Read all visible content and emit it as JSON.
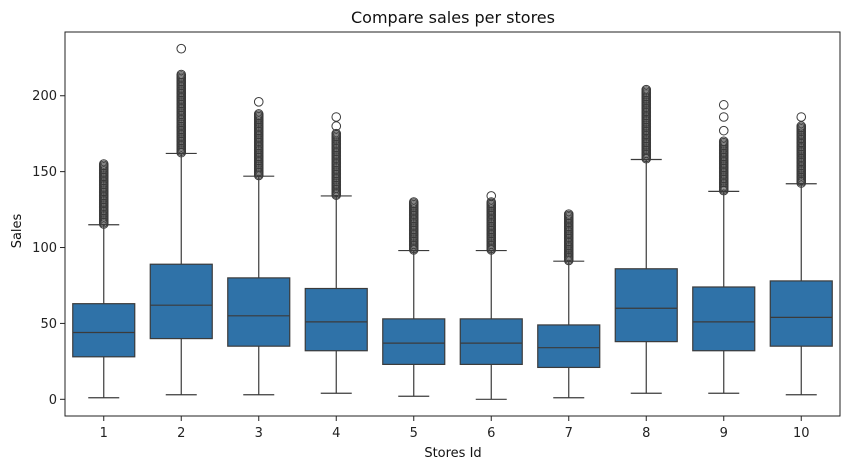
{
  "chart_data": {
    "type": "box",
    "title": "Compare sales per stores",
    "xlabel": "Stores Id",
    "ylabel": "Sales",
    "ylim": [
      -11,
      242
    ],
    "yticks": [
      0,
      50,
      100,
      150,
      200
    ],
    "grid": false,
    "legend": "none",
    "box_color": "#2f72a8",
    "line_color": "#3b3b3b",
    "categories": [
      "1",
      "2",
      "3",
      "4",
      "5",
      "6",
      "7",
      "8",
      "9",
      "10"
    ],
    "boxes": [
      {
        "store": "1",
        "min": 1,
        "q1": 28,
        "median": 44,
        "q3": 63,
        "max": 115,
        "outlier_max": 155
      },
      {
        "store": "2",
        "min": 3,
        "q1": 40,
        "median": 62,
        "q3": 89,
        "max": 162,
        "outlier_max": 214,
        "extreme_outliers": [
          231
        ]
      },
      {
        "store": "3",
        "min": 3,
        "q1": 35,
        "median": 55,
        "q3": 80,
        "max": 147,
        "outlier_max": 188,
        "extreme_outliers": [
          196
        ]
      },
      {
        "store": "4",
        "min": 4,
        "q1": 32,
        "median": 51,
        "q3": 73,
        "max": 134,
        "outlier_max": 175,
        "extreme_outliers": [
          180,
          186
        ]
      },
      {
        "store": "5",
        "min": 2,
        "q1": 23,
        "median": 37,
        "q3": 53,
        "max": 98,
        "outlier_max": 130
      },
      {
        "store": "6",
        "min": 0,
        "q1": 23,
        "median": 37,
        "q3": 53,
        "max": 98,
        "outlier_max": 130,
        "extreme_outliers": [
          134
        ]
      },
      {
        "store": "7",
        "min": 1,
        "q1": 21,
        "median": 34,
        "q3": 49,
        "max": 91,
        "outlier_max": 122
      },
      {
        "store": "8",
        "min": 4,
        "q1": 38,
        "median": 60,
        "q3": 86,
        "max": 158,
        "outlier_max": 204
      },
      {
        "store": "9",
        "min": 4,
        "q1": 32,
        "median": 51,
        "q3": 74,
        "max": 137,
        "outlier_max": 170,
        "extreme_outliers": [
          177,
          186,
          194
        ]
      },
      {
        "store": "10",
        "min": 3,
        "q1": 35,
        "median": 54,
        "q3": 78,
        "max": 142,
        "outlier_max": 180,
        "extreme_outliers": [
          186
        ]
      }
    ]
  }
}
